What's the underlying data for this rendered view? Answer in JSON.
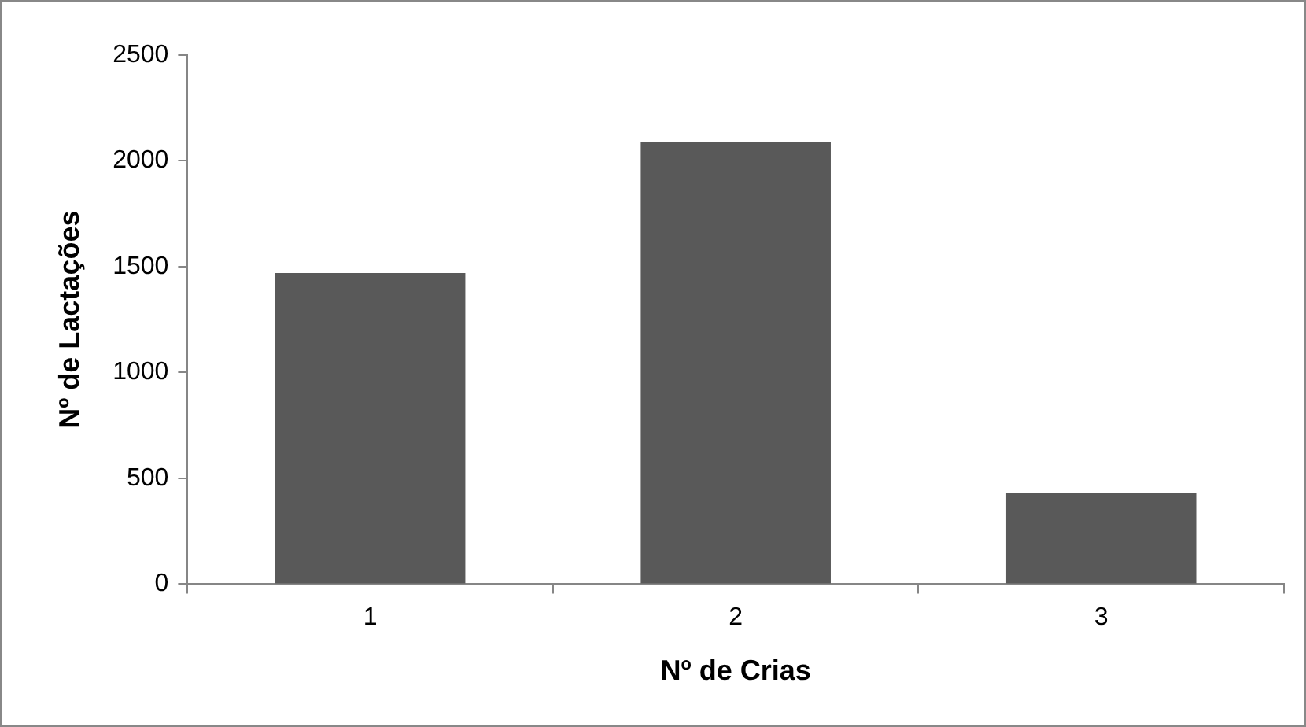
{
  "chart_data": {
    "type": "bar",
    "xlabel": "Nº de Crias",
    "ylabel": "Nº de Lactações",
    "categories": [
      "1",
      "2",
      "3"
    ],
    "values": [
      1470,
      2090,
      430
    ],
    "color": "#595959",
    "ylim": [
      0,
      2500
    ],
    "yticks": [
      0,
      500,
      1000,
      1500,
      2000,
      2500
    ],
    "grid": false,
    "legend": false
  }
}
